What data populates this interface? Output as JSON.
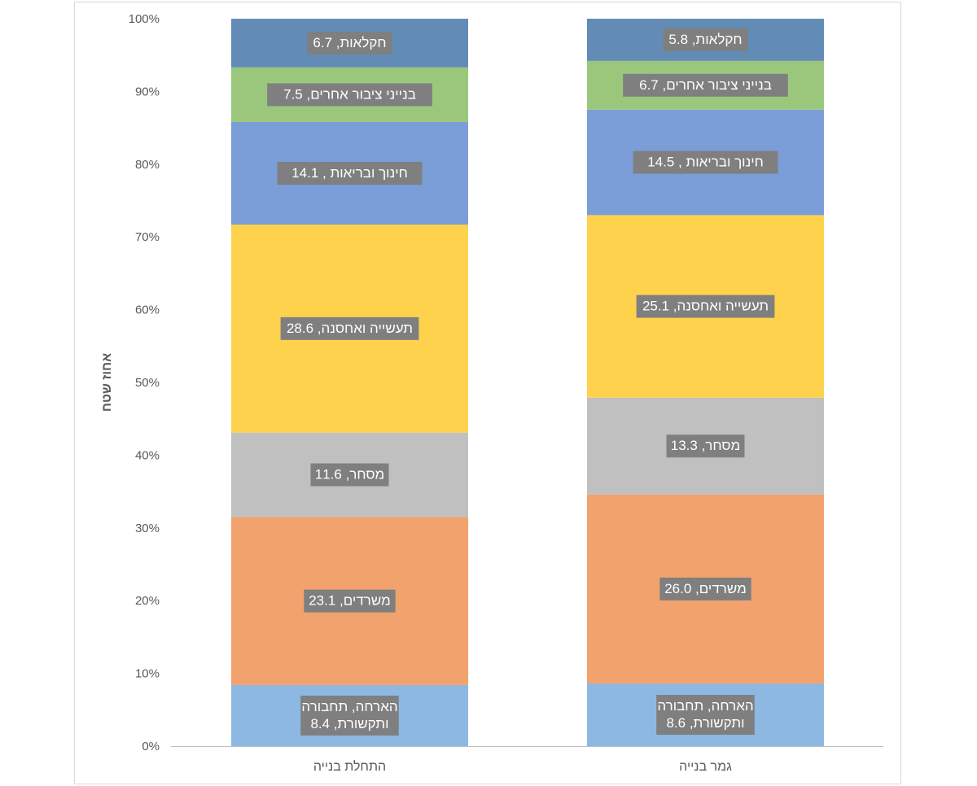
{
  "chart_data": {
    "type": "bar",
    "stacked": true,
    "percent_stacked": true,
    "categories": [
      "התחלת בנייה",
      "גמר בנייה"
    ],
    "ylabel": "אחוז שטח",
    "ylim": [
      0,
      100
    ],
    "y_ticks": [
      "0%",
      "10%",
      "20%",
      "30%",
      "40%",
      "50%",
      "60%",
      "70%",
      "80%",
      "90%",
      "100%"
    ],
    "grid": false,
    "legend": "none",
    "series": [
      {
        "values": [
          8.4,
          8.6
        ],
        "color": "#8db8e2",
        "labels": [
          [
            "הארחה, תחבורה",
            "ותקשורת, 8.4"
          ],
          [
            "הארחה, תחבורה",
            "ותקשורת, 8.6"
          ]
        ]
      },
      {
        "values": [
          23.1,
          26.0
        ],
        "color": "#f2a26d",
        "labels": [
          [
            "משרדים, 23.1"
          ],
          [
            "משרדים, 26.0"
          ]
        ]
      },
      {
        "values": [
          11.6,
          13.3
        ],
        "color": "#c0c0c0",
        "labels": [
          [
            "מסחר, 11.6"
          ],
          [
            "מסחר, 13.3"
          ]
        ]
      },
      {
        "values": [
          28.6,
          25.1
        ],
        "color": "#ffd24d",
        "labels": [
          [
            "תעשייה ואחסנה, 28.6"
          ],
          [
            "תעשייה ואחסנה, 25.1"
          ]
        ]
      },
      {
        "values": [
          14.1,
          14.5
        ],
        "color": "#7b9dd8",
        "labels": [
          [
            "חינוך ובריאות , 14.1"
          ],
          [
            "חינוך ובריאות , 14.5"
          ]
        ]
      },
      {
        "values": [
          7.5,
          6.7
        ],
        "color": "#9bc77c",
        "labels": [
          [
            "בנייני ציבור אחרים, 7.5"
          ],
          [
            "בנייני ציבור אחרים, 6.7"
          ]
        ]
      },
      {
        "values": [
          6.7,
          5.8
        ],
        "color": "#628cb5",
        "labels": [
          [
            "חקלאות, 6.7"
          ],
          [
            "חקלאות, 5.8"
          ]
        ]
      }
    ]
  }
}
